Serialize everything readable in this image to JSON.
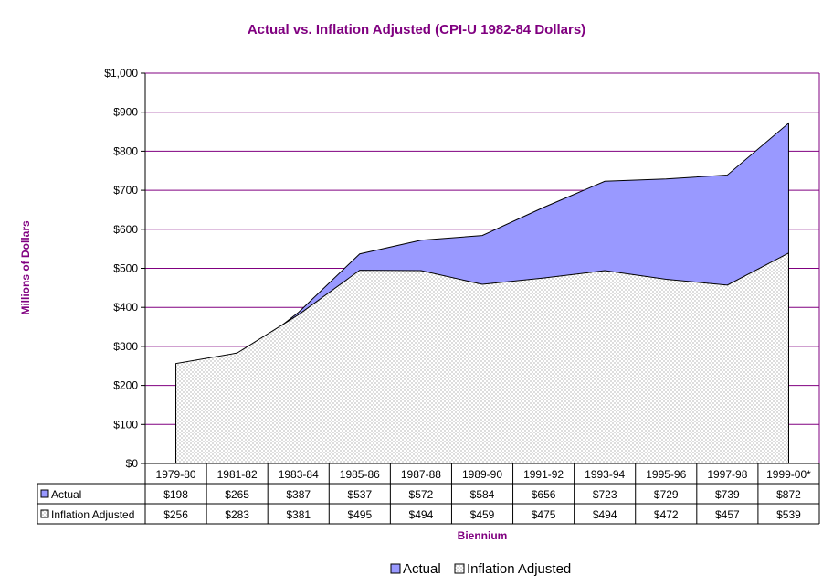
{
  "chart_data": {
    "type": "area",
    "title": "Actual vs. Inflation Adjusted (CPI-U 1982-84 Dollars)",
    "xlabel": "Biennium",
    "ylabel": "Millions of Dollars",
    "ylim": [
      0,
      1000
    ],
    "yticks": [
      "$0",
      "$100",
      "$200",
      "$300",
      "$400",
      "$500",
      "$600",
      "$700",
      "$800",
      "$900",
      "$1,000"
    ],
    "categories": [
      "1979-80",
      "1981-82",
      "1983-84",
      "1985-86",
      "1987-88",
      "1989-90",
      "1991-92",
      "1993-94",
      "1995-96",
      "1997-98",
      "1999-00*"
    ],
    "grid": true,
    "legend_position": "bottom",
    "series": [
      {
        "name": "Actual",
        "color": "#9999ff",
        "values": [
          198,
          265,
          387,
          537,
          572,
          584,
          656,
          723,
          729,
          739,
          872
        ],
        "labels": [
          "$198",
          "$265",
          "$387",
          "$537",
          "$572",
          "$584",
          "$656",
          "$723",
          "$729",
          "$739",
          "$872"
        ]
      },
      {
        "name": "Inflation Adjusted",
        "color": "#ffffff",
        "pattern": "dotted",
        "values": [
          256,
          283,
          381,
          495,
          494,
          459,
          475,
          494,
          472,
          457,
          539
        ],
        "labels": [
          "$256",
          "$283",
          "$381",
          "$495",
          "$494",
          "$459",
          "$475",
          "$494",
          "$472",
          "$457",
          "$539"
        ]
      }
    ]
  }
}
